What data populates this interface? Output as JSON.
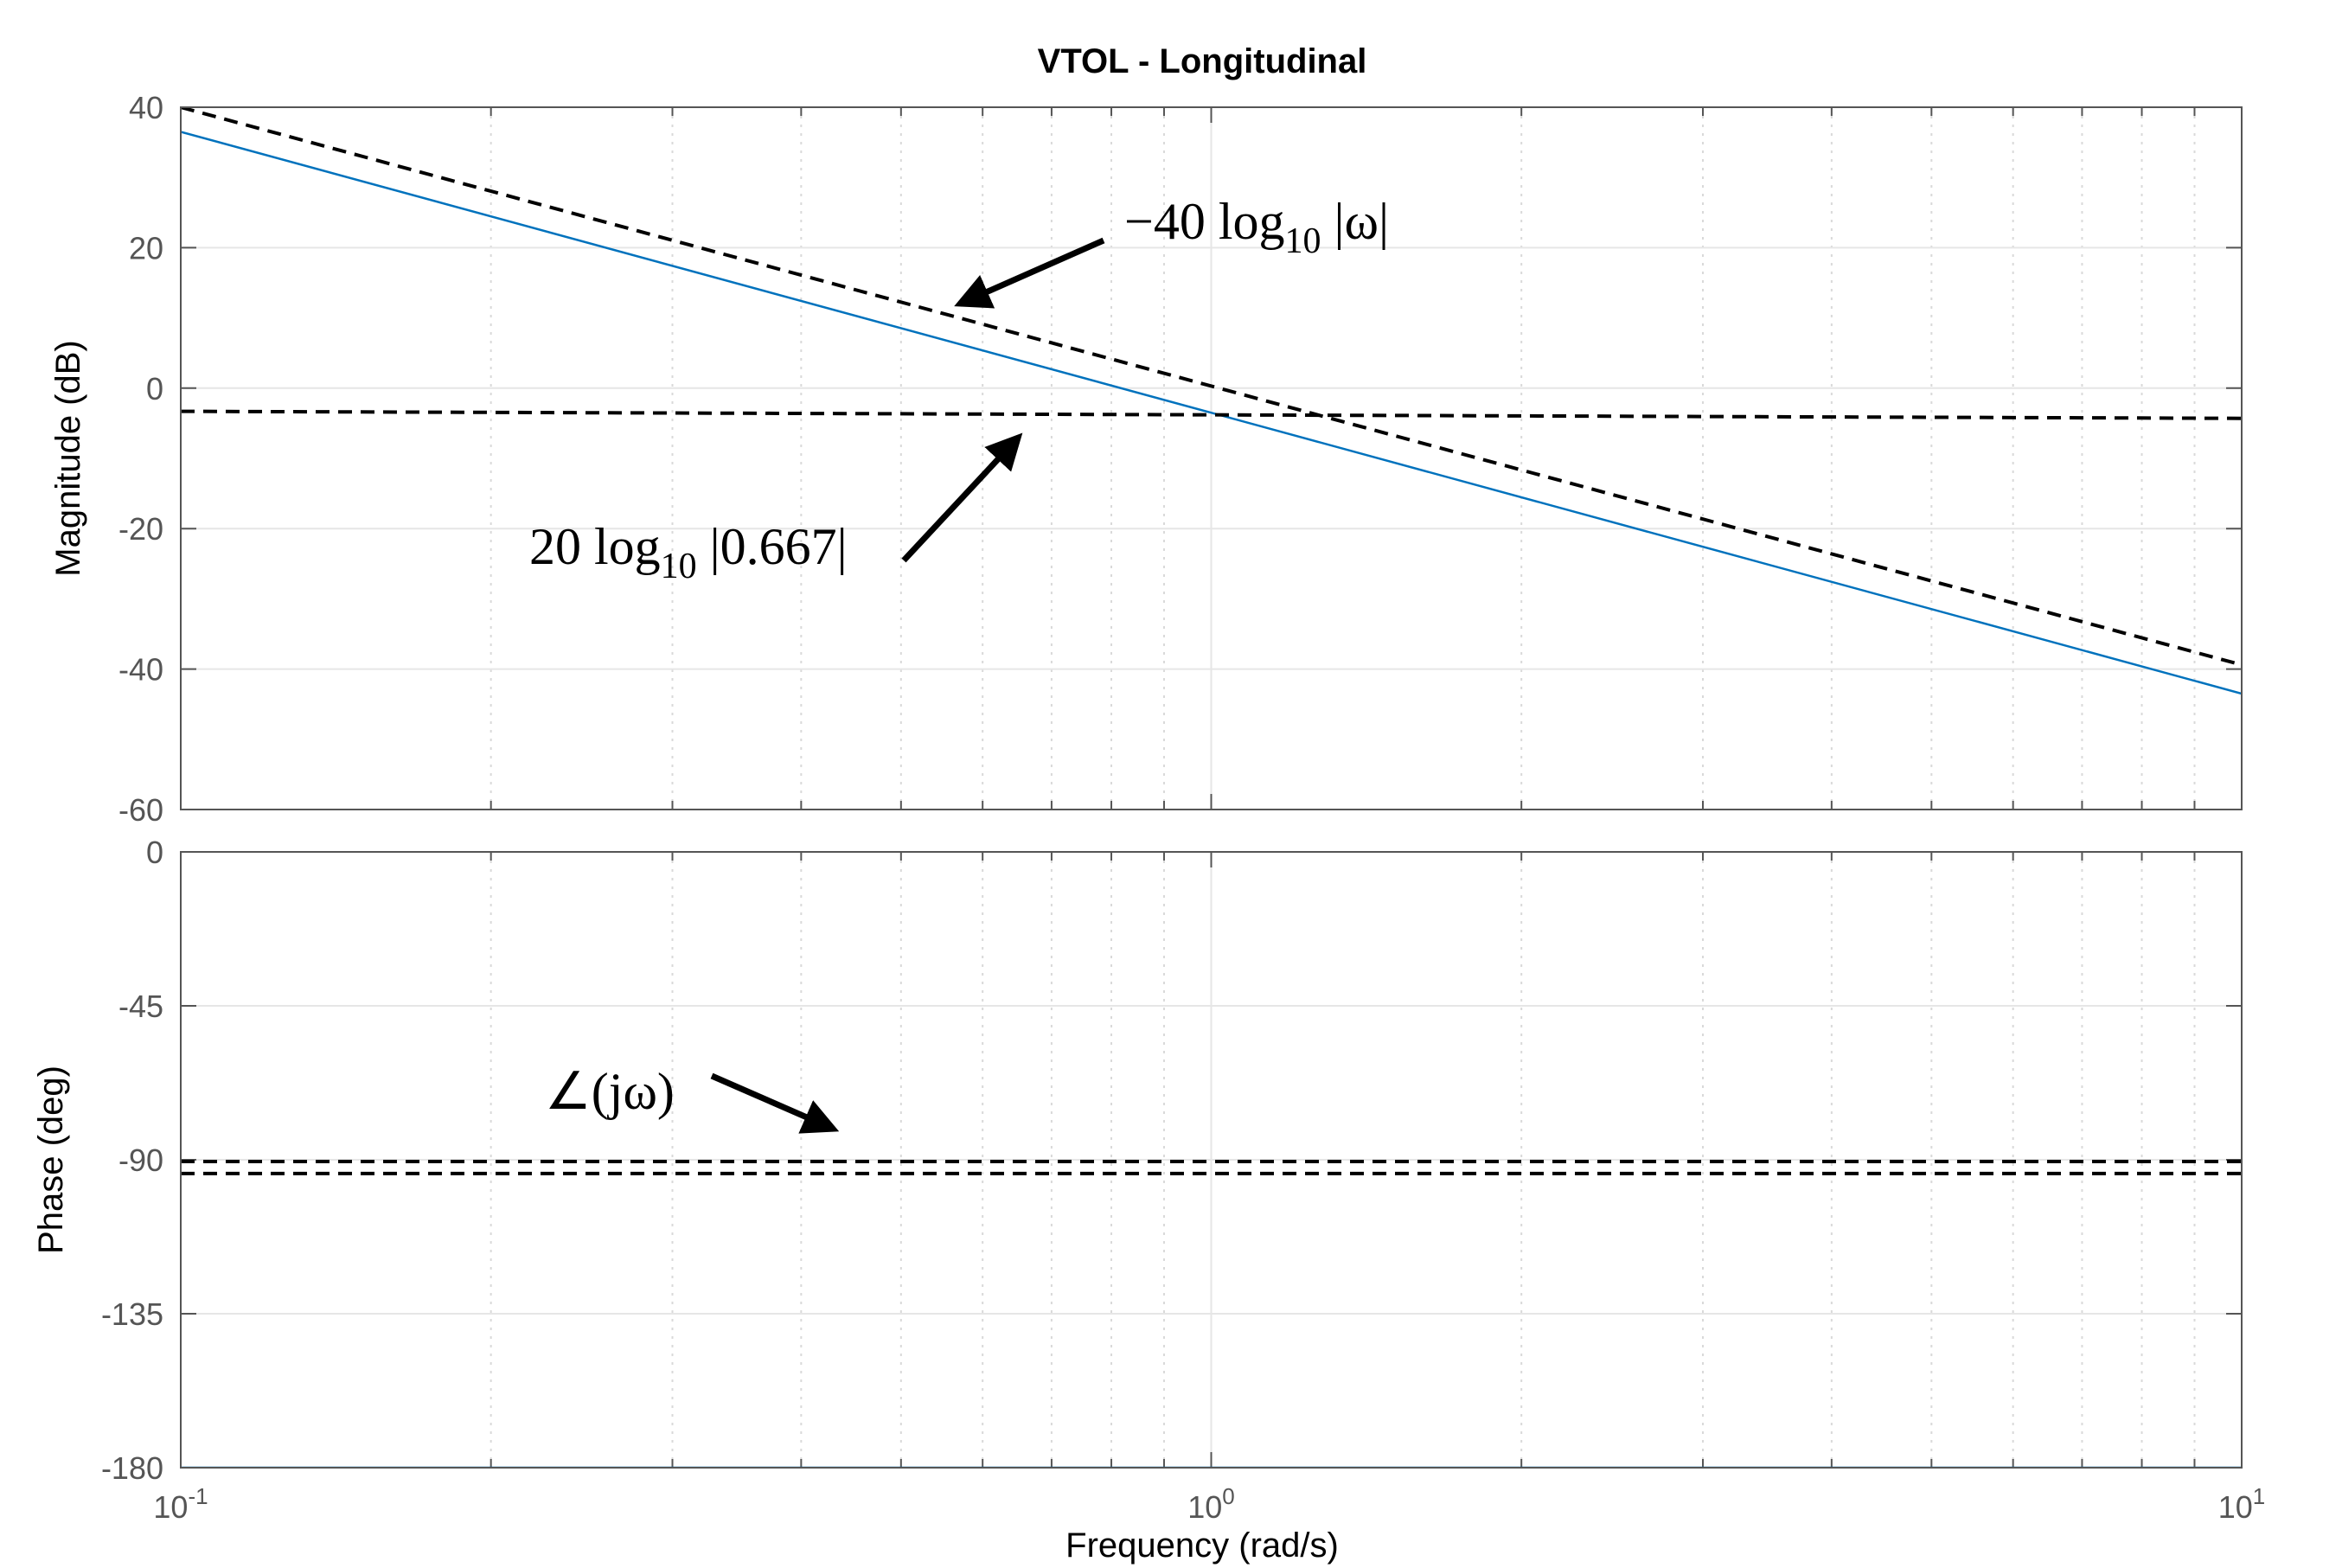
{
  "chart_data": {
    "type": "line",
    "title": "VTOL - Longitudinal",
    "xlabel": "Frequency  (rad/s)",
    "x_scale": "log",
    "xlim": [
      0.1,
      10
    ],
    "x_ticks": [
      {
        "value": 0.1,
        "base": "10",
        "exp": "-1"
      },
      {
        "value": 1,
        "base": "10",
        "exp": "0"
      },
      {
        "value": 10,
        "base": "10",
        "exp": "1"
      }
    ],
    "grid": true,
    "colors": {
      "response": "#0072BD",
      "asymptote": "#000000",
      "grid": "#e6e6e6",
      "axes": "#555555"
    },
    "panels": [
      {
        "id": "magnitude",
        "ylabel": "Magnitude (dB)",
        "ylim": [
          -60,
          40
        ],
        "yticks": [
          40,
          20,
          0,
          -20,
          -40,
          -60
        ],
        "series": [
          {
            "style": "solid",
            "x": [
              0.1,
              10
            ],
            "y": [
              36.5,
              -43.5
            ]
          },
          {
            "style": "dashed",
            "x": [
              0.1,
              10
            ],
            "y": [
              40,
              -39.4
            ]
          },
          {
            "style": "dashed",
            "x": [
              0.1,
              10
            ],
            "y": [
              -3.3,
              -4.3
            ]
          }
        ],
        "annotations": [
          {
            "text": [
              "−40 log",
              "10",
              " |ω|"
            ],
            "arrow_to": [
              0.57,
              12
            ]
          },
          {
            "text": [
              "20 log",
              "10",
              " |0.667|"
            ],
            "arrow_to": [
              0.65,
              -7
            ]
          }
        ]
      },
      {
        "id": "phase",
        "ylabel": "Phase (deg)",
        "ylim": [
          -180,
          0
        ],
        "yticks": [
          0,
          -45,
          -90,
          -135,
          -180
        ],
        "series": [
          {
            "style": "solid",
            "x": [
              0.1,
              10
            ],
            "y": [
              -180,
              -180
            ]
          },
          {
            "style": "dashed",
            "x": [
              0.1,
              10
            ],
            "y": [
              -90.5,
              -90.5
            ]
          },
          {
            "style": "dashed",
            "x": [
              0.1,
              10
            ],
            "y": [
              -94,
              -94
            ]
          }
        ],
        "annotations": [
          {
            "text": [
              "∠(jω)"
            ],
            "arrow_to": [
              0.43,
              -81
            ]
          }
        ]
      }
    ]
  }
}
